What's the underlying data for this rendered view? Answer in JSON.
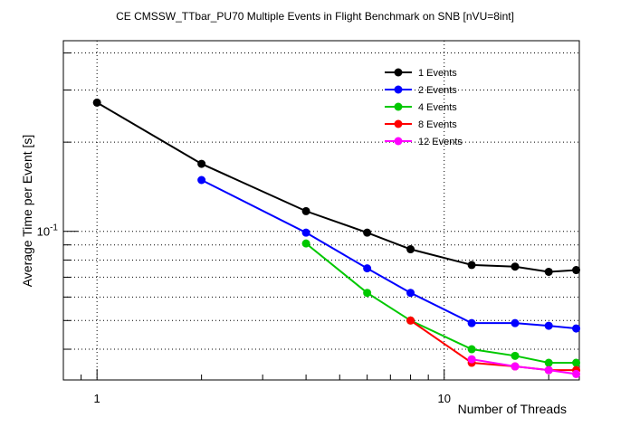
{
  "chart_data": {
    "type": "line",
    "title": "CE CMSSW_TTbar_PU70 Multiple Events in Flight Benchmark on SNB [nVU=8int]",
    "xlabel": "Number of Threads",
    "ylabel": "Average Time per Event [s]",
    "xscale": "log",
    "yscale": "log",
    "xlim": [
      0.8,
      24.5
    ],
    "ylim": [
      0.0315,
      0.44
    ],
    "x_tick_labels": [
      "1",
      "10"
    ],
    "x_ticks": [
      1,
      10
    ],
    "y_tick_labels": [
      "10^-1"
    ],
    "y_ticks": [
      0.1
    ],
    "grid": "horizontal dotted",
    "legend_position": "top-right",
    "series": [
      {
        "name": "1 Events",
        "color": "#000000",
        "x": [
          1,
          2,
          4,
          6,
          8,
          12,
          16,
          20,
          24
        ],
        "y": [
          0.272,
          0.169,
          0.117,
          0.099,
          0.087,
          0.077,
          0.076,
          0.073,
          0.074
        ]
      },
      {
        "name": "2 Events",
        "color": "#0000ff",
        "x": [
          2,
          4,
          6,
          8,
          12,
          16,
          20,
          24
        ],
        "y": [
          0.149,
          0.099,
          0.075,
          0.062,
          0.049,
          0.049,
          0.048,
          0.047
        ]
      },
      {
        "name": "4 Events",
        "color": "#00c800",
        "x": [
          4,
          6,
          8,
          12,
          16,
          20,
          24
        ],
        "y": [
          0.091,
          0.062,
          0.05,
          0.04,
          0.038,
          0.036,
          0.036
        ]
      },
      {
        "name": "8 Events",
        "color": "#ff0000",
        "x": [
          8,
          12,
          16,
          20,
          24
        ],
        "y": [
          0.05,
          0.036,
          0.035,
          0.034,
          0.034
        ]
      },
      {
        "name": "12 Events",
        "color": "#ff00ff",
        "x": [
          12,
          16,
          20,
          24
        ],
        "y": [
          0.037,
          0.035,
          0.034,
          0.033
        ]
      }
    ]
  }
}
